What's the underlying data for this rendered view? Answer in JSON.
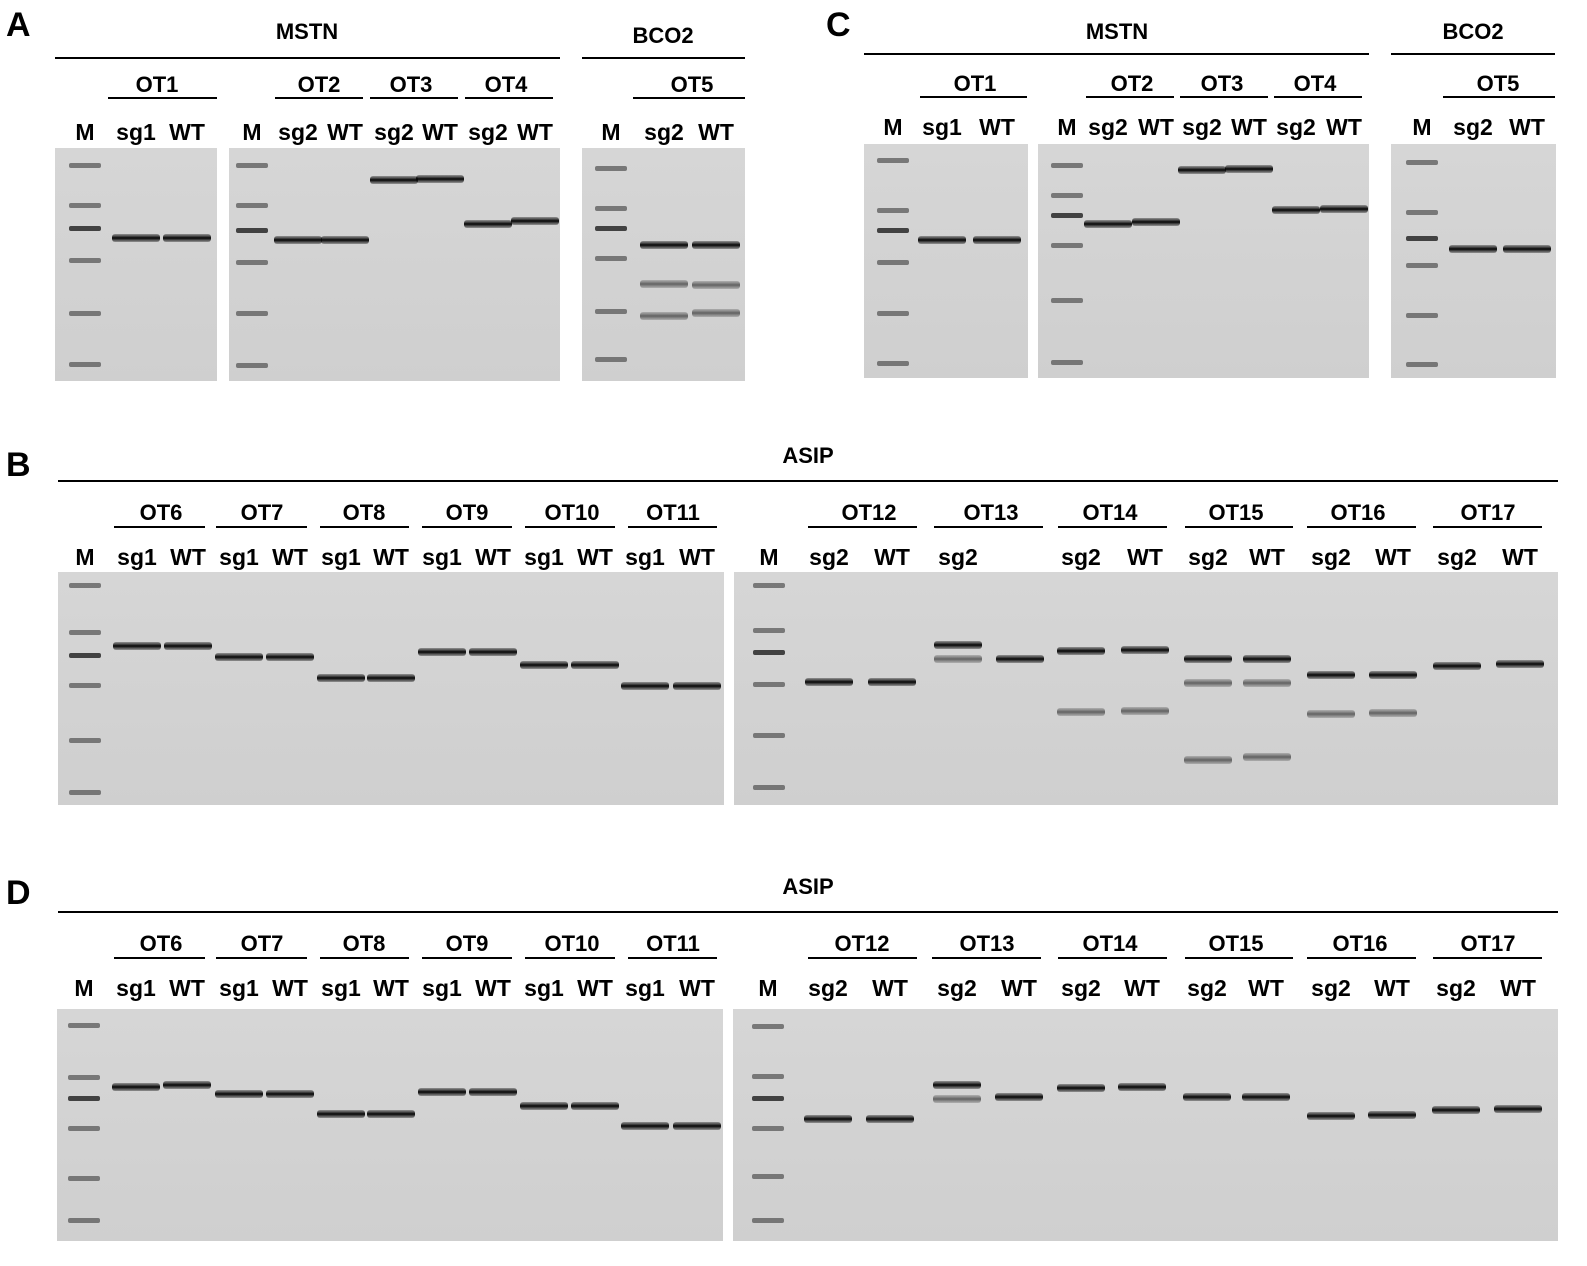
{
  "panels": [
    {
      "letter": "A",
      "gels": [
        {
          "lanes": [
            "M",
            "sg1",
            "WT"
          ],
          "ladder": [
            165,
            205,
            228,
            260,
            313,
            364
          ],
          "bands": [
            [],
            [
              238
            ],
            [
              238
            ]
          ]
        },
        {
          "lanes": [
            "M",
            "sg2",
            "WT",
            "sg2",
            "WT",
            "sg2",
            "WT"
          ],
          "ladder": [
            165,
            205,
            230,
            262,
            313,
            365
          ],
          "bands": [
            [],
            [
              240
            ],
            [
              240
            ],
            [
              180
            ],
            [
              179
            ],
            [
              224
            ],
            [
              221
            ]
          ]
        },
        {
          "lanes": [
            "M",
            "sg2",
            "WT"
          ],
          "ladder": [
            168,
            208,
            228,
            258,
            311,
            359
          ],
          "bands": [
            [],
            [
              245,
              284,
              316
            ],
            [
              245,
              285,
              313
            ]
          ]
        }
      ],
      "genes": [
        "MSTN",
        "BCO2"
      ],
      "targets": [
        "OT1",
        "OT2",
        "OT3",
        "OT4",
        "OT5"
      ]
    },
    {
      "letter": "C",
      "gels": [
        {
          "lanes": [
            "M",
            "sg1",
            "WT"
          ],
          "ladder": [
            160,
            210,
            230,
            262,
            313,
            363
          ],
          "bands": [
            [],
            [
              240
            ],
            [
              240
            ]
          ]
        },
        {
          "lanes": [
            "M",
            "sg2",
            "WT",
            "sg2",
            "WT",
            "sg2",
            "WT"
          ],
          "ladder": [
            165,
            195,
            215,
            245,
            300,
            362
          ],
          "bands": [
            [],
            [
              224
            ],
            [
              222
            ],
            [
              170
            ],
            [
              169
            ],
            [
              210
            ],
            [
              209
            ]
          ]
        },
        {
          "lanes": [
            "M",
            "sg2",
            "WT"
          ],
          "ladder": [
            162,
            212,
            238,
            265,
            315,
            364
          ],
          "bands": [
            [],
            [
              249
            ],
            [
              249
            ]
          ]
        }
      ],
      "genes": [
        "MSTN",
        "BCO2"
      ],
      "targets": [
        "OT1",
        "OT2",
        "OT3",
        "OT4",
        "OT5"
      ]
    },
    {
      "letter": "B",
      "gels": [
        {
          "lanes": [
            "M",
            "sg1",
            "WT",
            "sg1",
            "WT",
            "sg1",
            "WT",
            "sg1",
            "WT",
            "sg1",
            "WT",
            "sg1",
            "WT"
          ],
          "ladder": [
            585,
            632,
            655,
            685,
            740,
            792
          ],
          "bands": [
            [],
            [
              646
            ],
            [
              646
            ],
            [
              657
            ],
            [
              657
            ],
            [
              678
            ],
            [
              678
            ],
            [
              652
            ],
            [
              652
            ],
            [
              665
            ],
            [
              665
            ],
            [
              686
            ],
            [
              686
            ]
          ]
        },
        {
          "lanes": [
            "M",
            "sg2",
            "WT",
            "sg2",
            "",
            "sg2",
            "WT",
            "sg2",
            "WT",
            "sg2",
            "WT",
            "sg2",
            "WT"
          ],
          "ladder": [
            585,
            630,
            652,
            684,
            735,
            787
          ],
          "bands": [
            [],
            [
              682
            ],
            [
              682
            ],
            [
              645,
              659
            ],
            [
              659
            ],
            [
              651,
              712
            ],
            [
              650,
              711
            ],
            [
              659,
              683,
              760
            ],
            [
              659,
              683,
              757
            ],
            [
              675,
              714
            ],
            [
              675,
              713
            ],
            [
              666
            ],
            [
              664
            ]
          ]
        }
      ],
      "genes": [
        "ASIP"
      ],
      "targets": [
        "OT6",
        "OT7",
        "OT8",
        "OT9",
        "OT10",
        "OT11",
        "OT12",
        "OT13",
        "OT14",
        "OT15",
        "OT16",
        "OT17"
      ]
    },
    {
      "letter": "D",
      "gels": [
        {
          "lanes": [
            "M",
            "sg1",
            "WT",
            "sg1",
            "WT",
            "sg1",
            "WT",
            "sg1",
            "WT",
            "sg1",
            "WT",
            "sg1",
            "WT"
          ],
          "ladder": [
            1025,
            1077,
            1098,
            1128,
            1178,
            1220
          ],
          "bands": [
            [],
            [
              1087
            ],
            [
              1085
            ],
            [
              1094
            ],
            [
              1094
            ],
            [
              1114
            ],
            [
              1114
            ],
            [
              1092
            ],
            [
              1092
            ],
            [
              1106
            ],
            [
              1106
            ],
            [
              1126
            ],
            [
              1126
            ]
          ]
        },
        {
          "lanes": [
            "M",
            "sg2",
            "WT",
            "sg2",
            "WT",
            "sg2",
            "WT",
            "sg2",
            "WT",
            "sg2",
            "WT",
            "sg2",
            "WT"
          ],
          "ladder": [
            1026,
            1076,
            1098,
            1128,
            1176,
            1220
          ],
          "bands": [
            [],
            [
              1119
            ],
            [
              1119
            ],
            [
              1085,
              1099
            ],
            [
              1097
            ],
            [
              1088
            ],
            [
              1087
            ],
            [
              1097
            ],
            [
              1097
            ],
            [
              1116
            ],
            [
              1115
            ],
            [
              1110
            ],
            [
              1109
            ]
          ]
        }
      ],
      "genes": [
        "ASIP"
      ],
      "targets": [
        "OT6",
        "OT7",
        "OT8",
        "OT9",
        "OT10",
        "OT11",
        "OT12",
        "OT13",
        "OT14",
        "OT15",
        "OT16",
        "OT17"
      ]
    }
  ]
}
